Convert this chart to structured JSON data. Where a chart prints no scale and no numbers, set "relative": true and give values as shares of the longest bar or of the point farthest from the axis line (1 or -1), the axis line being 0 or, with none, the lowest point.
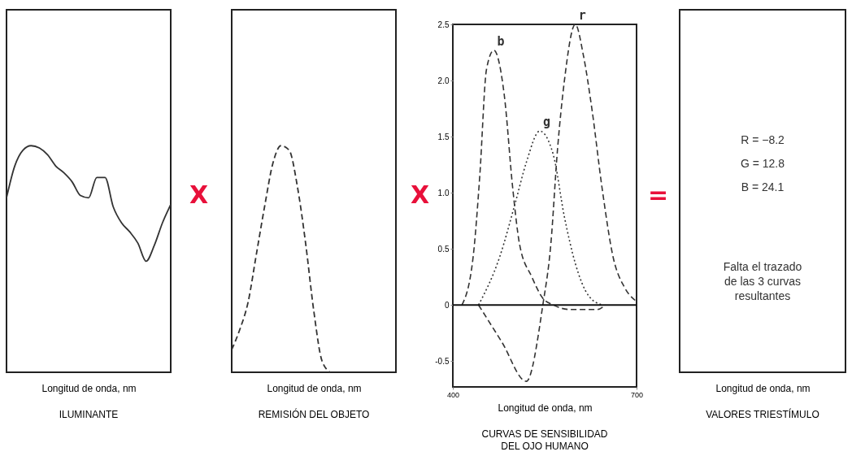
{
  "chart_data": [
    {
      "type": "line",
      "relative": true,
      "title": "ILUMINANTE",
      "xlabel": "Longitud de onda, nm",
      "annotations": [
        "X"
      ],
      "line_style": "solid",
      "color": "#333333",
      "categories": [
        null,
        null,
        null,
        null,
        null,
        null,
        null,
        null,
        null,
        null,
        null,
        null,
        null,
        null,
        null,
        null,
        null,
        null,
        null,
        null,
        null
      ],
      "values": [
        0.77,
        0.91,
        0.98,
        1,
        0.99,
        0.96,
        0.91,
        0.88,
        0.84,
        0.78,
        0.77,
        0.86,
        0.86,
        0.73,
        0.66,
        0.62,
        0.57,
        0.49,
        0.56,
        0.66,
        0.74
      ]
    },
    {
      "type": "line",
      "relative": true,
      "title": "REMISIÓN DEL OBJETO",
      "xlabel": "Longitud de onda, nm",
      "annotations": [
        "X"
      ],
      "line_style": "dashed",
      "color": "#333333",
      "categories": [
        null,
        null,
        null,
        null,
        null,
        null,
        null,
        null,
        null,
        null,
        null,
        null,
        null,
        null,
        null,
        null,
        null,
        null,
        null,
        null,
        null
      ],
      "values": [
        0.1,
        0.19,
        0.31,
        0.52,
        0.73,
        0.92,
        1,
        0.98,
        0.82,
        0.57,
        0.27,
        0.05,
        0,
        null,
        null,
        null,
        null,
        null,
        null,
        null,
        null
      ]
    },
    {
      "type": "line",
      "title": "CURVAS DE SENSIBILIDAD DEL OJO HUMANO",
      "xlabel": "Longitud de onda, nm",
      "annotations": [
        "="
      ],
      "xlim": [
        400,
        700
      ],
      "xticks": [
        400,
        700
      ],
      "ylim": [
        -0.73,
        2.5
      ],
      "yticks": [
        -0.5,
        0,
        0.5,
        {
          "value": 1,
          "label": "1.0"
        },
        1.5,
        {
          "value": 2,
          "label": "2.0"
        },
        2.5
      ],
      "ref_lines": [
        {
          "axis": "y",
          "value": 0
        }
      ],
      "series": [
        {
          "name": "b",
          "color": "#333333",
          "line_style": "dashed",
          "x": [
            415,
            433,
            444,
            455,
            467,
            484,
            498,
            509,
            529,
            547,
            564,
            591,
            636,
            649
          ],
          "values": [
            0,
            0.42,
            1.15,
            2.1,
            2.27,
            1.87,
            1.03,
            0.54,
            0.25,
            0.06,
            0,
            -0.04,
            -0.04,
            0
          ]
        },
        {
          "name": "g",
          "color": "#333333",
          "line_style": "dotted",
          "x": [
            442,
            476,
            502,
            520,
            542,
            564,
            582,
            600,
            622,
            644
          ],
          "values": [
            0,
            0.42,
            0.91,
            1.27,
            1.55,
            1.34,
            0.79,
            0.37,
            0.08,
            0
          ]
        },
        {
          "name": "r",
          "color": "#333333",
          "line_style": "dashed",
          "x": [
            442,
            480,
            520,
            547,
            560,
            571,
            582,
            600,
            613,
            627,
            644,
            662,
            680,
            698
          ],
          "values": [
            0,
            -0.33,
            -0.68,
            0,
            0.54,
            1.39,
            1.99,
            2.5,
            2.23,
            1.75,
            1.03,
            0.42,
            0.16,
            0.04
          ]
        }
      ]
    },
    {
      "type": "other",
      "title": "VALORES TRIESTÍMULO",
      "xlabel": "Longitud de onda, nm",
      "annotations": [
        "R = −8.2",
        "G = 12.8",
        "B = 24.1",
        "Falta el trazado de las 3 curvas resultantes"
      ]
    }
  ]
}
